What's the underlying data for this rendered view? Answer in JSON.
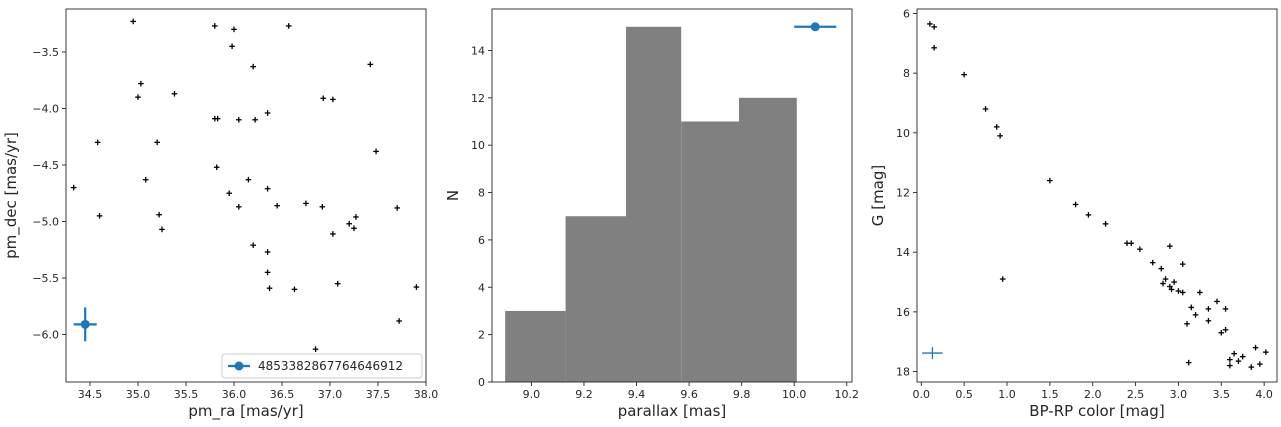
{
  "chart_data": [
    {
      "type": "scatter",
      "xlabel": "pm_ra [mas/yr]",
      "ylabel": "pm_dec [mas/yr]",
      "xlim": [
        34.25,
        38.0
      ],
      "ylim": [
        -6.42,
        -3.12
      ],
      "xticks": [
        34.5,
        35.0,
        35.5,
        36.0,
        36.5,
        37.0,
        37.5,
        38.0
      ],
      "xtick_labels": [
        "34.5",
        "35.0",
        "35.5",
        "36.0",
        "36.5",
        "37.0",
        "37.5",
        "38.0"
      ],
      "yticks": [
        -6.0,
        -5.5,
        -5.0,
        -4.5,
        -4.0,
        -3.5
      ],
      "ytick_labels": [
        "−6.0",
        "−5.5",
        "−5.0",
        "−4.5",
        "−4.0",
        "−3.5"
      ],
      "points": [
        [
          34.95,
          -3.23
        ],
        [
          35.0,
          -3.9
        ],
        [
          35.03,
          -3.78
        ],
        [
          35.08,
          -4.63
        ],
        [
          35.2,
          -4.3
        ],
        [
          35.22,
          -4.94
        ],
        [
          35.25,
          -5.07
        ],
        [
          35.38,
          -3.87
        ],
        [
          34.33,
          -4.7
        ],
        [
          34.58,
          -4.3
        ],
        [
          34.6,
          -4.95
        ],
        [
          35.8,
          -3.27
        ],
        [
          35.8,
          -4.09
        ],
        [
          35.83,
          -4.09
        ],
        [
          35.82,
          -4.52
        ],
        [
          35.95,
          -4.75
        ],
        [
          35.98,
          -3.45
        ],
        [
          36.0,
          -3.3
        ],
        [
          36.05,
          -4.1
        ],
        [
          36.05,
          -4.87
        ],
        [
          36.15,
          -4.63
        ],
        [
          36.2,
          -3.63
        ],
        [
          36.22,
          -4.1
        ],
        [
          36.2,
          -5.21
        ],
        [
          36.35,
          -4.04
        ],
        [
          36.35,
          -4.71
        ],
        [
          36.35,
          -5.27
        ],
        [
          36.35,
          -5.45
        ],
        [
          36.37,
          -5.59
        ],
        [
          36.45,
          -4.86
        ],
        [
          36.57,
          -3.27
        ],
        [
          36.63,
          -5.6
        ],
        [
          36.75,
          -4.84
        ],
        [
          36.85,
          -6.13
        ],
        [
          36.92,
          -4.87
        ],
        [
          36.93,
          -3.91
        ],
        [
          37.03,
          -3.92
        ],
        [
          37.03,
          -5.11
        ],
        [
          37.08,
          -5.55
        ],
        [
          37.2,
          -5.02
        ],
        [
          37.25,
          -5.06
        ],
        [
          37.27,
          -4.96
        ],
        [
          37.42,
          -3.61
        ],
        [
          37.48,
          -4.38
        ],
        [
          37.7,
          -4.88
        ],
        [
          37.72,
          -5.88
        ],
        [
          37.9,
          -5.58
        ]
      ],
      "reference_star": {
        "name": "4853382867764646912",
        "x": 34.45,
        "y": -5.91,
        "xerr": 0.12,
        "yerr": 0.15,
        "color": "#1f77b4"
      },
      "legend_loc": "lower right",
      "marker_color": "#000000"
    },
    {
      "type": "bar",
      "subtype": "histogram",
      "xlabel": "parallax [mas]",
      "ylabel": "N",
      "xlim": [
        8.85,
        10.22
      ],
      "ylim": [
        0,
        15.75
      ],
      "xticks": [
        9.0,
        9.2,
        9.4,
        9.6,
        9.8,
        10.0,
        10.2
      ],
      "xtick_labels": [
        "9.0",
        "9.2",
        "9.4",
        "9.6",
        "9.8",
        "10.0",
        "10.2"
      ],
      "yticks": [
        0,
        2,
        4,
        6,
        8,
        10,
        12,
        14
      ],
      "ytick_labels": [
        "0",
        "2",
        "4",
        "6",
        "8",
        "10",
        "12",
        "14"
      ],
      "bin_edges": [
        8.9,
        9.13,
        9.36,
        9.57,
        9.79,
        10.01
      ],
      "values": [
        3,
        7,
        15,
        11,
        12
      ],
      "bar_color": "#808080",
      "reference_star": {
        "x": 10.08,
        "y": 15,
        "xerr": 0.08,
        "color": "#1f77b4"
      }
    },
    {
      "type": "scatter",
      "xlabel": "BP-RP color [mag]",
      "ylabel": "G [mag]",
      "xlim": [
        -0.05,
        4.15
      ],
      "ylim": [
        18.35,
        5.85
      ],
      "y_inverted": true,
      "xticks": [
        0.0,
        0.5,
        1.0,
        1.5,
        2.0,
        2.5,
        3.0,
        3.5,
        4.0
      ],
      "xtick_labels": [
        "0.0",
        "0.5",
        "1.0",
        "1.5",
        "2.0",
        "2.5",
        "3.0",
        "3.5",
        "4.0"
      ],
      "yticks": [
        6,
        8,
        10,
        12,
        14,
        16,
        18
      ],
      "ytick_labels": [
        "6",
        "8",
        "10",
        "12",
        "14",
        "16",
        "18"
      ],
      "points": [
        [
          0.1,
          6.35
        ],
        [
          0.15,
          6.45
        ],
        [
          0.15,
          7.15
        ],
        [
          0.5,
          8.05
        ],
        [
          0.75,
          9.2
        ],
        [
          0.88,
          9.8
        ],
        [
          0.92,
          10.1
        ],
        [
          0.95,
          14.9
        ],
        [
          1.5,
          11.6
        ],
        [
          1.8,
          12.4
        ],
        [
          1.95,
          12.75
        ],
        [
          2.15,
          13.05
        ],
        [
          2.4,
          13.7
        ],
        [
          2.45,
          13.7
        ],
        [
          2.55,
          13.9
        ],
        [
          2.7,
          14.35
        ],
        [
          2.8,
          14.55
        ],
        [
          2.85,
          14.9
        ],
        [
          2.82,
          15.05
        ],
        [
          2.9,
          15.15
        ],
        [
          2.92,
          15.25
        ],
        [
          2.95,
          15.0
        ],
        [
          3.0,
          15.3
        ],
        [
          3.05,
          15.35
        ],
        [
          2.9,
          13.8
        ],
        [
          3.05,
          14.4
        ],
        [
          3.15,
          15.85
        ],
        [
          3.2,
          16.1
        ],
        [
          3.1,
          16.4
        ],
        [
          3.25,
          15.35
        ],
        [
          3.35,
          16.3
        ],
        [
          3.35,
          15.9
        ],
        [
          3.45,
          15.65
        ],
        [
          3.5,
          16.7
        ],
        [
          3.55,
          16.6
        ],
        [
          3.55,
          15.9
        ],
        [
          3.6,
          17.8
        ],
        [
          3.6,
          17.6
        ],
        [
          3.65,
          17.4
        ],
        [
          3.7,
          17.65
        ],
        [
          3.75,
          17.5
        ],
        [
          3.85,
          17.85
        ],
        [
          3.9,
          17.2
        ],
        [
          3.95,
          17.75
        ],
        [
          4.02,
          17.35
        ],
        [
          3.12,
          17.7
        ]
      ],
      "reference_star": {
        "x": 0.13,
        "y": 17.38,
        "xerr": 0.12,
        "yerr": 0.2,
        "color": "#1f77b4"
      },
      "marker_color": "#000000"
    }
  ]
}
